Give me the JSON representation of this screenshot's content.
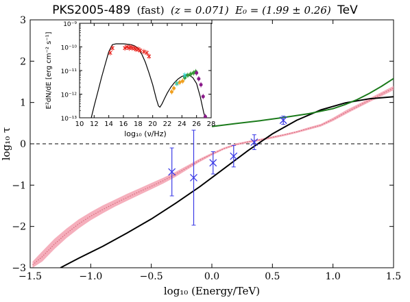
{
  "title": {
    "source": "PKS2005-489",
    "state": "(fast)",
    "z_text": "(z = 0.071)",
    "energy_text": "E₀ = (1.99 ± 0.26)",
    "unit": "TeV"
  },
  "chart_data": [
    {
      "type": "line",
      "name": "main-panel",
      "xlabel": "log₁₀ (Energy/TeV)",
      "ylabel": "log₁₀ τ",
      "xlim": [
        -1.5,
        1.5
      ],
      "ylim": [
        -3,
        3
      ],
      "xticks": [
        -1.5,
        -1.0,
        -0.5,
        0.0,
        0.5,
        1.0,
        1.5
      ],
      "xtick_labels": [
        "−1.5",
        "−1.0",
        "−0.5",
        "0.0",
        "0.5",
        "1.0",
        "1.5"
      ],
      "yticks": [
        -3,
        -2,
        -1,
        0,
        1,
        2,
        3
      ],
      "ytick_labels": [
        "−3",
        "−2",
        "−1",
        "0",
        "1",
        "2",
        "3"
      ],
      "grid": false,
      "reference_line_y": 0,
      "colors": {
        "band": "#f4a6b5",
        "band_center": "#d05a6e",
        "black_curve": "#000000",
        "green_curve": "#1a7a1a",
        "points": "#3a3ae6"
      },
      "series": [
        {
          "style": "band",
          "x": [
            -1.48,
            -1.4,
            -1.3,
            -1.2,
            -1.1,
            -1.0,
            -0.9,
            -0.8,
            -0.7,
            -0.6,
            -0.5,
            -0.4,
            -0.3,
            -0.2,
            -0.1,
            0.0,
            0.1,
            0.2,
            0.3,
            0.4,
            0.5,
            0.6,
            0.7,
            0.8,
            0.9,
            1.0,
            1.1,
            1.2,
            1.3,
            1.4,
            1.5
          ],
          "lower": [
            -3.0,
            -2.85,
            -2.55,
            -2.28,
            -2.05,
            -1.85,
            -1.68,
            -1.52,
            -1.38,
            -1.24,
            -1.1,
            -0.96,
            -0.8,
            -0.62,
            -0.44,
            -0.28,
            -0.14,
            -0.04,
            0.02,
            0.07,
            0.13,
            0.19,
            0.26,
            0.34,
            0.42,
            0.55,
            0.71,
            0.86,
            1.01,
            1.15,
            1.3
          ],
          "upper": [
            -2.85,
            -2.6,
            -2.3,
            -2.05,
            -1.83,
            -1.65,
            -1.49,
            -1.35,
            -1.21,
            -1.08,
            -0.95,
            -0.82,
            -0.68,
            -0.52,
            -0.36,
            -0.22,
            -0.09,
            0.01,
            0.07,
            0.12,
            0.18,
            0.24,
            0.31,
            0.4,
            0.48,
            0.63,
            0.8,
            0.95,
            1.1,
            1.25,
            1.4
          ],
          "center": [
            -2.93,
            -2.73,
            -2.43,
            -2.17,
            -1.94,
            -1.75,
            -1.59,
            -1.44,
            -1.3,
            -1.16,
            -1.03,
            -0.89,
            -0.74,
            -0.57,
            -0.4,
            -0.25,
            -0.12,
            -0.02,
            0.05,
            0.1,
            0.16,
            0.22,
            0.29,
            0.37,
            0.45,
            0.59,
            0.75,
            0.9,
            1.05,
            1.2,
            1.35
          ]
        },
        {
          "style": "black",
          "x": [
            -1.25,
            -1.1,
            -0.9,
            -0.7,
            -0.5,
            -0.3,
            -0.1,
            0.1,
            0.3,
            0.5,
            0.7,
            0.9,
            1.1,
            1.3,
            1.5
          ],
          "y": [
            -3.0,
            -2.77,
            -2.48,
            -2.16,
            -1.82,
            -1.44,
            -1.04,
            -0.6,
            -0.16,
            0.24,
            0.57,
            0.82,
            0.99,
            1.09,
            1.14
          ]
        },
        {
          "style": "green",
          "x": [
            0.0,
            0.2,
            0.4,
            0.6,
            0.8,
            1.0,
            1.1,
            1.2,
            1.3,
            1.4,
            1.5
          ],
          "y": [
            0.42,
            0.49,
            0.56,
            0.64,
            0.73,
            0.85,
            0.95,
            1.07,
            1.22,
            1.39,
            1.58
          ]
        },
        {
          "style": "points",
          "x": [
            -0.33,
            -0.15,
            0.01,
            0.18,
            0.35,
            0.59
          ],
          "y": [
            -0.68,
            -0.82,
            -0.46,
            -0.3,
            0.04,
            0.57
          ],
          "yerr": [
            0.58,
            1.15,
            0.27,
            0.26,
            0.18,
            0.1
          ]
        }
      ]
    },
    {
      "type": "line",
      "name": "inset-sed",
      "xlabel": "log₁₀ (ν/Hz)",
      "ylabel": "E²dN/dE [erg cm⁻² s⁻¹]",
      "xlim": [
        10,
        28
      ],
      "ylim_log10": [
        -13,
        -9
      ],
      "xticks": [
        10,
        12,
        14,
        16,
        18,
        20,
        22,
        24,
        26,
        28
      ],
      "xtick_labels": [
        "10",
        "12",
        "14",
        "16",
        "18",
        "20",
        "22",
        "24",
        "26",
        "28"
      ],
      "yticks_log10": [
        -13,
        -12,
        -11,
        -10,
        -9
      ],
      "ytick_labels": [
        "10⁻¹³",
        "10⁻¹²",
        "10⁻¹¹",
        "10⁻¹⁰",
        "10⁻⁹"
      ],
      "sed_model": {
        "x": [
          11.6,
          12.0,
          12.5,
          13.0,
          13.5,
          14.0,
          14.5,
          15.0,
          16.0,
          17.0,
          17.5,
          18.0,
          18.5,
          19.0,
          19.5,
          20.0,
          20.5,
          20.8,
          21.0,
          21.3,
          21.6,
          22.0,
          22.5,
          23.0,
          23.5,
          24.0,
          24.5,
          25.0,
          25.5,
          26.0,
          26.5,
          27.0,
          27.2
        ],
        "logy": [
          -13.0,
          -12.5,
          -11.9,
          -11.3,
          -10.75,
          -10.2,
          -9.9,
          -9.87,
          -9.87,
          -9.9,
          -9.95,
          -10.05,
          -10.3,
          -10.65,
          -11.1,
          -11.6,
          -12.2,
          -12.5,
          -12.55,
          -12.4,
          -12.2,
          -11.95,
          -11.7,
          -11.5,
          -11.35,
          -11.25,
          -11.2,
          -11.2,
          -11.3,
          -11.55,
          -12.1,
          -12.8,
          -13.0
        ]
      },
      "sed_points": [
        {
          "group": "radio-optical",
          "color": "#e8201a",
          "marker": "x",
          "x": [
            14.2,
            14.5,
            16.2,
            16.5,
            16.8,
            17.0,
            17.2,
            17.5,
            17.7,
            18.0,
            18.3,
            18.8,
            19.2,
            19.5
          ],
          "logy": [
            -10.25,
            -10.05,
            -10.05,
            -10.0,
            -10.05,
            -10.0,
            -10.05,
            -10.05,
            -10.1,
            -10.1,
            -10.15,
            -10.2,
            -10.25,
            -10.4
          ]
        },
        {
          "group": "fermi-low",
          "color": "#f0a020",
          "marker": "o",
          "x": [
            22.6,
            22.9,
            23.3,
            23.7,
            24.1
          ],
          "logy": [
            -11.9,
            -11.75,
            -11.55,
            -11.5,
            -11.45
          ]
        },
        {
          "group": "fermi-high",
          "color": "#3a9a3a",
          "marker": "o",
          "x": [
            24.4,
            24.8,
            25.2,
            25.6,
            25.9
          ],
          "logy": [
            -11.3,
            -11.2,
            -11.15,
            -11.1,
            -11.05
          ]
        },
        {
          "group": "hess",
          "color": "#8a1a8a",
          "marker": "o",
          "x": [
            26.0,
            26.3,
            26.6,
            26.9,
            27.2
          ],
          "logy": [
            -11.1,
            -11.35,
            -11.6,
            -12.1,
            -12.95
          ]
        },
        {
          "group": "uv-band",
          "color": "#2ad4c8",
          "marker": "x",
          "x": [
            23.3,
            24.4
          ],
          "logy": [
            -11.55,
            -11.2
          ]
        }
      ]
    }
  ]
}
